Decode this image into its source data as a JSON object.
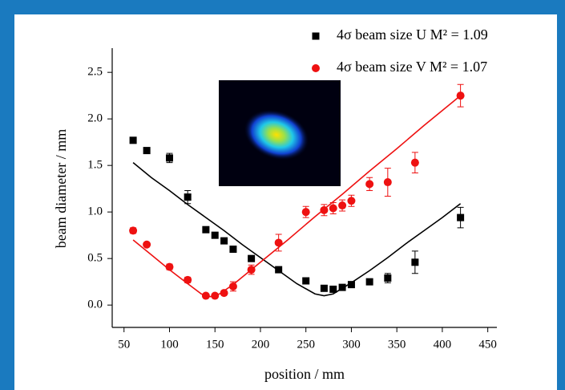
{
  "chart_data": {
    "type": "scatter",
    "xlabel": "position / mm",
    "ylabel": "beam diameter / mm",
    "xlim": [
      37,
      460
    ],
    "ylim": [
      -0.24,
      2.76
    ],
    "xticks": [
      50,
      100,
      150,
      200,
      250,
      300,
      350,
      400,
      450
    ],
    "yticks": [
      {
        "value": 0,
        "label": "0.0"
      },
      0.5,
      {
        "value": 1,
        "label": "1.0"
      },
      1.5,
      {
        "value": 2,
        "label": "2.0"
      },
      2.5
    ],
    "legend": "top-right",
    "series": [
      {
        "name": "4σ beam size U M² = 1.09",
        "color": "#000000",
        "marker": "square",
        "x": [
          60,
          75,
          100,
          120,
          140,
          150,
          160,
          170,
          190,
          220,
          250,
          270,
          280,
          290,
          300,
          320,
          340,
          370,
          420
        ],
        "values": [
          1.77,
          1.66,
          1.58,
          1.16,
          0.81,
          0.75,
          0.69,
          0.6,
          0.5,
          0.38,
          0.26,
          0.18,
          0.17,
          0.19,
          0.22,
          0.25,
          0.29,
          0.46,
          0.94
        ],
        "errors": [
          null,
          null,
          0.05,
          0.07,
          null,
          null,
          null,
          null,
          null,
          null,
          null,
          null,
          null,
          null,
          null,
          null,
          0.05,
          0.12,
          0.11
        ],
        "fit_x": [
          60,
          80,
          100,
          120,
          140,
          160,
          180,
          200,
          220,
          240,
          260,
          270,
          280,
          300,
          320,
          340,
          360,
          380,
          400,
          420
        ],
        "fit_values": [
          1.53,
          1.37,
          1.23,
          1.08,
          0.94,
          0.8,
          0.65,
          0.51,
          0.37,
          0.23,
          0.12,
          0.1,
          0.12,
          0.24,
          0.37,
          0.51,
          0.66,
          0.8,
          0.94,
          1.09
        ]
      },
      {
        "name": "4σ beam size V M² = 1.07",
        "color": "#ee1111",
        "marker": "circle",
        "x": [
          60,
          75,
          100,
          120,
          140,
          150,
          160,
          170,
          190,
          220,
          250,
          270,
          280,
          290,
          300,
          320,
          340,
          370,
          420
        ],
        "values": [
          0.8,
          0.65,
          0.41,
          0.27,
          0.1,
          0.1,
          0.13,
          0.2,
          0.38,
          0.67,
          1.0,
          1.02,
          1.04,
          1.07,
          1.12,
          1.3,
          1.32,
          1.53,
          2.25
        ],
        "errors": [
          0.03,
          null,
          0.03,
          0.03,
          null,
          null,
          null,
          0.05,
          0.05,
          0.09,
          0.06,
          0.06,
          0.06,
          0.06,
          0.06,
          0.07,
          0.15,
          0.11,
          0.12
        ],
        "fit_x": [
          60,
          80,
          100,
          120,
          135,
          145,
          155,
          170,
          200,
          230,
          260,
          290,
          320,
          350,
          380,
          420
        ],
        "fit_values": [
          0.7,
          0.54,
          0.38,
          0.23,
          0.12,
          0.09,
          0.12,
          0.22,
          0.46,
          0.7,
          0.95,
          1.19,
          1.44,
          1.68,
          1.93,
          2.25
        ]
      }
    ]
  }
}
